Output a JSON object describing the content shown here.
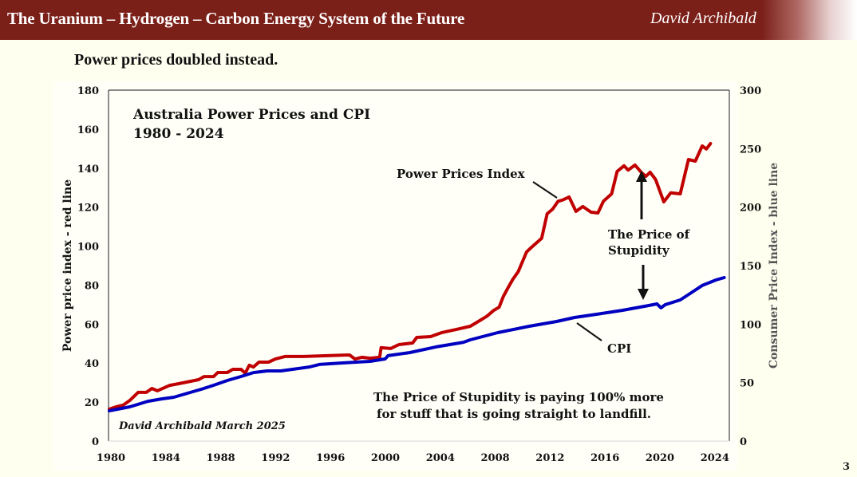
{
  "header": {
    "title": "The Uranium – Hydrogen – Carbon Energy System of the Future",
    "author": "David Archibald",
    "bg_color": "#7b2019"
  },
  "slide": {
    "subtitle": "Power prices doubled instead.",
    "page_number": "3"
  },
  "chart_data": {
    "type": "line",
    "title": "Australia Power Prices and CPI",
    "subtitle": "1980 - 2024",
    "xlabel": "",
    "ylabel": "Power price index - red line",
    "y2label": "Consumer Price Index - blue line",
    "xlim": [
      1980,
      2025.2
    ],
    "ylim": [
      0,
      180
    ],
    "y2lim": [
      0,
      300
    ],
    "xticks": [
      "1980",
      "1984",
      "1988",
      "1992",
      "1996",
      "2000",
      "2004",
      "2008",
      "2012",
      "2016",
      "2020",
      "2024"
    ],
    "xtick_values": [
      1980,
      1984,
      1988,
      1992,
      1996,
      2000,
      2004,
      2008,
      2012,
      2016,
      2020,
      2024
    ],
    "yticks": [
      "0",
      "20",
      "40",
      "60",
      "80",
      "100",
      "120",
      "140",
      "160",
      "180"
    ],
    "ytick_values": [
      0,
      20,
      40,
      60,
      80,
      100,
      120,
      140,
      160,
      180
    ],
    "y2ticks": [
      "0",
      "50",
      "100",
      "150",
      "200",
      "250",
      "300"
    ],
    "y2tick_values": [
      0,
      50,
      100,
      150,
      200,
      250,
      300
    ],
    "grid": false,
    "series": [
      {
        "name": "Power Prices Index",
        "axis": "left",
        "color": "#c00000",
        "x": [
          1980.0,
          1980.5,
          1981.0,
          1981.5,
          1982.1,
          1982.7,
          1983.1,
          1983.5,
          1984.4,
          1985.1,
          1986.5,
          1986.9,
          1987.6,
          1987.9,
          1988.6,
          1989.0,
          1989.6,
          1989.9,
          1990.2,
          1990.5,
          1990.9,
          1991.6,
          1992.1,
          1992.8,
          1994.1,
          1995.9,
          1997.5,
          1997.9,
          1998.4,
          1999.0,
          1999.7,
          1999.8,
          2000.5,
          2001.1,
          2002.1,
          2002.4,
          2003.4,
          2004.2,
          2005.3,
          2006.3,
          2006.8,
          2007.5,
          2008.0,
          2008.4,
          2008.7,
          2009.0,
          2009.4,
          2009.8,
          2010.1,
          2010.4,
          2010.7,
          2011.1,
          2011.5,
          2011.9,
          2012.3,
          2012.7,
          2013.0,
          2013.5,
          2014.0,
          2014.5,
          2015.1,
          2015.6,
          2016.0,
          2016.6,
          2017.0,
          2017.5,
          2017.8,
          2018.3,
          2018.8,
          2019.1,
          2019.4,
          2019.8,
          2020.4,
          2020.9,
          2021.6,
          2022.2,
          2022.7,
          2023.2,
          2023.5,
          2023.8
        ],
        "values": [
          16.4,
          17.6,
          18.4,
          20.9,
          25.0,
          25.0,
          27.0,
          25.8,
          28.6,
          29.5,
          31.5,
          33.1,
          33.1,
          35.2,
          35.2,
          36.8,
          36.8,
          34.8,
          38.9,
          38.0,
          40.5,
          40.5,
          42.1,
          43.4,
          43.4,
          43.8,
          44.2,
          42.1,
          43.0,
          42.5,
          43.0,
          47.9,
          47.5,
          49.5,
          50.3,
          53.2,
          53.6,
          55.6,
          57.3,
          58.9,
          61.0,
          64.0,
          67.0,
          68.7,
          74.0,
          78.0,
          83.0,
          87.0,
          92.0,
          97.0,
          99.0,
          101.5,
          104.0,
          116.6,
          119.0,
          123.0,
          123.6,
          125.2,
          117.8,
          120.3,
          117.4,
          117.0,
          123.0,
          126.8,
          138.3,
          141.2,
          139.0,
          141.6,
          137.5,
          135.8,
          137.9,
          134.2,
          122.7,
          127.3,
          126.8,
          144.4,
          143.6,
          151.4,
          149.8,
          152.6
        ]
      },
      {
        "name": "CPI",
        "axis": "right",
        "color": "#0000c0",
        "x": [
          1980.0,
          1981.5,
          1982.8,
          1983.8,
          1984.7,
          1985.7,
          1986.7,
          1987.6,
          1988.6,
          1989.6,
          1990.5,
          1991.5,
          1992.5,
          1993.4,
          1994.6,
          1995.3,
          1997.0,
          1999.0,
          2000.1,
          2000.3,
          2001.9,
          2003.8,
          2005.8,
          2006.3,
          2008.3,
          2010.6,
          2011.6,
          2012.6,
          2013.9,
          2015.5,
          2017.4,
          2019.3,
          2019.9,
          2020.2,
          2020.5,
          2021.6,
          2022.4,
          2023.2,
          2024.2,
          2024.8
        ],
        "values": [
          25.9,
          29.3,
          34.0,
          36.1,
          37.5,
          40.9,
          44.3,
          47.7,
          51.8,
          55.2,
          58.6,
          60.0,
          60.0,
          61.4,
          63.4,
          65.5,
          66.8,
          68.2,
          70.2,
          73.0,
          75.7,
          80.5,
          84.5,
          86.6,
          92.7,
          98.2,
          100.2,
          102.3,
          105.7,
          108.4,
          111.8,
          115.9,
          117.3,
          113.9,
          116.6,
          120.7,
          126.8,
          133.0,
          137.7,
          139.8
        ]
      }
    ],
    "annotations": [
      {
        "text": "Power Prices Index",
        "points_to": "Power Prices Index",
        "at_x": 2012.8
      },
      {
        "text": "CPI",
        "points_to": "CPI",
        "at_x": 2013.5
      },
      {
        "text_lines": [
          "The Price of",
          "Stupidity"
        ],
        "arrow_up_to_year": 2018.8,
        "arrow_down_to_year": 2018.8
      },
      {
        "text_lines": [
          "The Price of Stupidity is paying 100% more",
          "for stuff that is going straight to landfill."
        ]
      },
      {
        "text": "David Archibald March 2025",
        "style": "italic credit"
      }
    ],
    "legend": "none"
  }
}
